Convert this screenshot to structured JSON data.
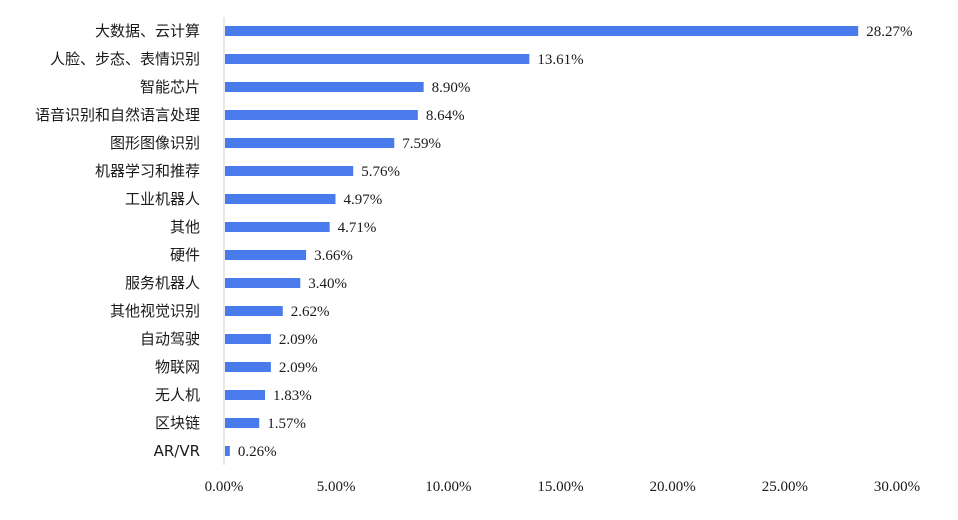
{
  "chart_data": {
    "type": "bar",
    "orientation": "horizontal",
    "categories": [
      "大数据、云计算",
      "人脸、步态、表情识别",
      "智能芯片",
      "语音识别和自然语言处理",
      "图形图像识别",
      "机器学习和推荐",
      "工业机器人",
      "其他",
      "硬件",
      "服务机器人",
      "其他视觉识别",
      "自动驾驶",
      "物联网",
      "无人机",
      "区块链",
      "AR/VR"
    ],
    "values": [
      28.27,
      13.61,
      8.9,
      8.64,
      7.59,
      5.76,
      4.97,
      4.71,
      3.66,
      3.4,
      2.62,
      2.09,
      2.09,
      1.83,
      1.57,
      0.26
    ],
    "value_labels": [
      "28.27%",
      "13.61%",
      "8.90%",
      "8.64%",
      "7.59%",
      "5.76%",
      "4.97%",
      "4.71%",
      "3.66%",
      "3.40%",
      "2.62%",
      "2.09%",
      "2.09%",
      "1.83%",
      "1.57%",
      "0.26%"
    ],
    "xlim": [
      0,
      30
    ],
    "x_ticks": [
      0,
      5,
      10,
      15,
      20,
      25,
      30
    ],
    "x_tick_labels": [
      "0.00%",
      "5.00%",
      "10.00%",
      "15.00%",
      "20.00%",
      "25.00%",
      "30.00%"
    ],
    "title": "",
    "xlabel": "",
    "ylabel": "",
    "grid": false,
    "legend": "none",
    "colors": {
      "bar": "#4a7bec"
    }
  }
}
